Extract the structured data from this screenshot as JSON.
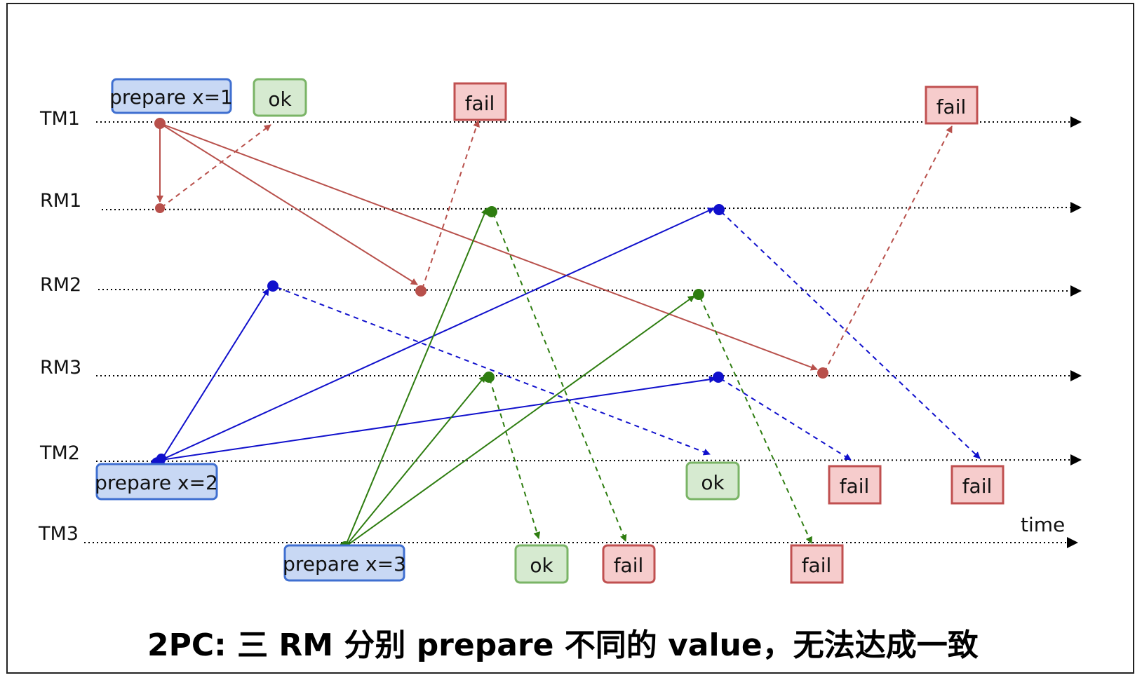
{
  "lanes": [
    {
      "key": "TM1",
      "label": "TM1"
    },
    {
      "key": "RM1",
      "label": "RM1"
    },
    {
      "key": "RM2",
      "label": "RM2"
    },
    {
      "key": "RM3",
      "label": "RM3"
    },
    {
      "key": "TM2",
      "label": "TM2"
    },
    {
      "key": "TM3",
      "label": "TM3"
    }
  ],
  "axis_label": "time",
  "boxes": {
    "prepare_tm1": "prepare x=1",
    "ok_tm1": "ok",
    "fail_tm1_a": "fail",
    "fail_tm1_b": "fail",
    "prepare_tm2": "prepare x=2",
    "ok_tm2": "ok",
    "fail_tm2_a": "fail",
    "fail_tm2_b": "fail",
    "prepare_tm3": "prepare x=3",
    "ok_tm3": "ok",
    "fail_tm3_a": "fail",
    "fail_tm3_b": "fail"
  },
  "caption": "2PC: 三 RM 分别 prepare 不同的 value，无法达成一致",
  "colors": {
    "tm1": "#b8504b",
    "tm2": "#1010cc",
    "tm3": "#2e7d10",
    "prepare_fill": "#c8d8f4",
    "prepare_stroke": "#3f6fd0",
    "ok_fill": "#d6ead0",
    "ok_stroke": "#7ab466",
    "fail_fill": "#f6cccc",
    "fail_stroke": "#c05050"
  }
}
